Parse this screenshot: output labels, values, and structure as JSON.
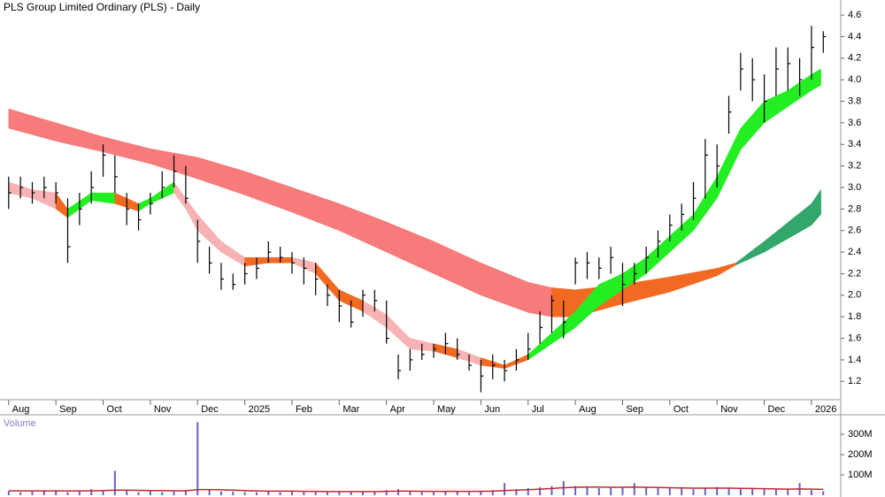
{
  "chart_data": [
    {
      "type": "hlc",
      "title": "PLS Group Limited Ordinary (PLS) - Daily",
      "xlim": [
        -0.09,
        17.62
      ],
      "ylim": [
        1.03,
        4.74
      ],
      "xticks": [
        {
          "value": 0,
          "label": "Aug"
        },
        {
          "value": 1,
          "label": "Sep"
        },
        {
          "value": 2,
          "label": "Oct"
        },
        {
          "value": 3,
          "label": "Nov"
        },
        {
          "value": 4,
          "label": "Dec"
        },
        {
          "value": 5,
          "label": "2025"
        },
        {
          "value": 6,
          "label": "Feb"
        },
        {
          "value": 7,
          "label": "Mar"
        },
        {
          "value": 8,
          "label": "Apr"
        },
        {
          "value": 9,
          "label": "May"
        },
        {
          "value": 10,
          "label": "Jun"
        },
        {
          "value": 11,
          "label": "Jul"
        },
        {
          "value": 12,
          "label": "Aug"
        },
        {
          "value": 13,
          "label": "Sep"
        },
        {
          "value": 14,
          "label": "Oct"
        },
        {
          "value": 15,
          "label": "Nov"
        },
        {
          "value": 16,
          "label": "Dec"
        },
        {
          "value": 17,
          "label": "2026"
        }
      ],
      "yticks": [
        1.2,
        1.4,
        1.6,
        1.8,
        {
          "value": 2,
          "label": "2.0"
        },
        2.2,
        2.4,
        2.6,
        2.8,
        {
          "value": 3,
          "label": "3.0"
        },
        3.2,
        3.4,
        3.6,
        3.8,
        {
          "value": 4,
          "label": "4.0"
        },
        4.2,
        4.4,
        4.6
      ],
      "bar_color": "#000000",
      "x": [
        0,
        0.25,
        0.5,
        0.75,
        1,
        1.25,
        1.5,
        1.75,
        2,
        2.25,
        2.5,
        2.75,
        3,
        3.25,
        3.5,
        3.75,
        4,
        4.25,
        4.5,
        4.75,
        5,
        5.25,
        5.5,
        5.75,
        6,
        6.25,
        6.5,
        6.75,
        7,
        7.25,
        7.5,
        7.75,
        8,
        8.25,
        8.5,
        8.75,
        9,
        9.25,
        9.5,
        9.75,
        10,
        10.25,
        10.5,
        10.75,
        11,
        11.25,
        11.5,
        11.75,
        12,
        12.25,
        12.5,
        12.75,
        13,
        13.25,
        13.5,
        13.75,
        14,
        14.25,
        14.5,
        14.75,
        15,
        15.25,
        15.5,
        15.75,
        16,
        16.25,
        16.5,
        16.75,
        17,
        17.25
      ],
      "high": [
        3.1,
        3.1,
        3.05,
        3.1,
        3.05,
        2.9,
        2.95,
        3.15,
        3.4,
        3.3,
        2.95,
        2.85,
        2.95,
        3.15,
        3.3,
        3.2,
        2.7,
        2.45,
        2.3,
        2.2,
        2.3,
        2.35,
        2.5,
        2.45,
        2.4,
        2.35,
        2.3,
        2.1,
        2.05,
        1.95,
        2.05,
        2.05,
        1.95,
        1.45,
        1.5,
        1.55,
        1.55,
        1.65,
        1.6,
        1.45,
        1.4,
        1.45,
        1.4,
        1.5,
        1.65,
        1.85,
        2.0,
        1.95,
        2.35,
        2.4,
        2.35,
        2.45,
        2.3,
        2.3,
        2.45,
        2.6,
        2.75,
        2.85,
        3.05,
        3.45,
        3.4,
        3.85,
        4.25,
        4.2,
        4.05,
        4.3,
        4.3,
        4.2,
        4.5,
        4.45
      ],
      "low": [
        2.8,
        2.9,
        2.85,
        2.9,
        2.85,
        2.3,
        2.65,
        2.85,
        3.1,
        2.95,
        2.65,
        2.6,
        2.75,
        2.9,
        3.0,
        2.85,
        2.3,
        2.2,
        2.05,
        2.05,
        2.1,
        2.15,
        2.3,
        2.3,
        2.2,
        2.1,
        2.0,
        1.9,
        1.75,
        1.7,
        1.8,
        1.85,
        1.55,
        1.22,
        1.3,
        1.4,
        1.42,
        1.45,
        1.4,
        1.3,
        1.1,
        1.22,
        1.2,
        1.3,
        1.4,
        1.55,
        1.65,
        1.6,
        2.1,
        2.15,
        2.15,
        2.2,
        1.9,
        2.1,
        2.2,
        2.35,
        2.5,
        2.6,
        2.7,
        2.9,
        3.0,
        3.5,
        3.9,
        3.8,
        3.6,
        3.85,
        3.9,
        3.85,
        4.0,
        4.25
      ],
      "close": [
        2.95,
        3.0,
        2.95,
        3.0,
        2.95,
        2.45,
        2.8,
        3.0,
        3.3,
        3.1,
        2.8,
        2.7,
        2.85,
        3.0,
        3.15,
        2.9,
        2.5,
        2.3,
        2.15,
        2.1,
        2.2,
        2.25,
        2.4,
        2.35,
        2.3,
        2.25,
        2.15,
        2.0,
        1.9,
        1.75,
        2.0,
        1.95,
        1.6,
        1.3,
        1.4,
        1.45,
        1.5,
        1.55,
        1.45,
        1.35,
        1.25,
        1.35,
        1.3,
        1.4,
        1.5,
        1.7,
        1.95,
        1.75,
        2.3,
        2.3,
        2.25,
        2.35,
        2.1,
        2.2,
        2.35,
        2.5,
        2.65,
        2.75,
        2.9,
        3.3,
        3.2,
        3.7,
        4.1,
        4.0,
        3.8,
        4.1,
        4.15,
        4.0,
        4.3,
        4.4
      ],
      "bands": [
        {
          "x": [
            0,
            1,
            2,
            3,
            4,
            5,
            6,
            7,
            8,
            9,
            10,
            11,
            11.5,
            12,
            13,
            14,
            15,
            15.4,
            16,
            17,
            17.2
          ],
          "upper": [
            3.73,
            3.6,
            3.47,
            3.36,
            3.28,
            3.15,
            3.0,
            2.85,
            2.68,
            2.5,
            2.3,
            2.12,
            2.07,
            2.05,
            2.1,
            2.17,
            2.25,
            2.3,
            2.5,
            2.85,
            2.98
          ],
          "lower": [
            3.55,
            3.43,
            3.33,
            3.22,
            3.08,
            2.93,
            2.77,
            2.6,
            2.4,
            2.2,
            2.0,
            1.84,
            1.8,
            1.8,
            1.92,
            2.03,
            2.18,
            2.28,
            2.4,
            2.65,
            2.75
          ],
          "colors": [
            "#f77b7b",
            "#f77b7b",
            "#f77b7b",
            "#f77b7b",
            "#f77b7b",
            "#f77b7b",
            "#f77b7b",
            "#f77b7b",
            "#f77b7b",
            "#f77b7b",
            "#f77b7b",
            "#f77b7b",
            "#f26a22",
            "#f26a22",
            "#f26a22",
            "#f26a22",
            "#f26a22",
            "#33a66b",
            "#33a66b",
            "#33a66b",
            "#33a66b"
          ]
        },
        {
          "x": [
            0,
            0.5,
            1,
            1.25,
            1.75,
            2.25,
            2.75,
            3,
            3.5,
            3.75,
            4,
            4.5,
            5,
            5.5,
            6,
            6.5,
            7,
            7.5,
            8,
            8.5,
            9,
            9.5,
            10,
            10.5,
            11,
            11.5,
            12,
            12.5,
            13,
            13.5,
            14,
            14.5,
            15,
            15.5,
            16,
            16.5,
            17,
            17.2
          ],
          "upper": [
            3.05,
            2.98,
            2.95,
            2.8,
            2.95,
            2.95,
            2.85,
            2.9,
            3.05,
            2.9,
            2.75,
            2.5,
            2.35,
            2.35,
            2.35,
            2.3,
            2.05,
            1.95,
            1.82,
            1.6,
            1.55,
            1.5,
            1.42,
            1.35,
            1.45,
            1.65,
            1.85,
            2.1,
            2.2,
            2.35,
            2.55,
            2.75,
            3.1,
            3.55,
            3.8,
            3.9,
            4.05,
            4.1
          ],
          "lower": [
            2.95,
            2.9,
            2.8,
            2.72,
            2.88,
            2.85,
            2.78,
            2.85,
            2.95,
            2.8,
            2.6,
            2.4,
            2.27,
            2.3,
            2.3,
            2.2,
            1.95,
            1.85,
            1.7,
            1.5,
            1.48,
            1.42,
            1.35,
            1.32,
            1.4,
            1.55,
            1.7,
            1.9,
            2.05,
            2.2,
            2.4,
            2.6,
            2.9,
            3.35,
            3.6,
            3.75,
            3.9,
            3.95
          ],
          "colors": [
            "#f7b3b3",
            "#f7b3b3",
            "#f26a22",
            "#22ee22",
            "#22ee22",
            "#f26a22",
            "#22ee22",
            "#22ee22",
            "#f7b3b3",
            "#f7b3b3",
            "#f7b3b3",
            "#f7b3b3",
            "#f26a22",
            "#f26a22",
            "#f7b3b3",
            "#f26a22",
            "#f26a22",
            "#f7b3b3",
            "#f7b3b3",
            "#f7b3b3",
            "#f26a22",
            "#f7b3b3",
            "#f26a22",
            "#f26a22",
            "#22ee22",
            "#22ee22",
            "#22ee22",
            "#22ee22",
            "#22ee22",
            "#22ee22",
            "#22ee22",
            "#22ee22",
            "#22ee22",
            "#22ee22",
            "#22ee22",
            "#22ee22",
            "#22ee22",
            "#22ee22"
          ]
        }
      ]
    },
    {
      "type": "volume",
      "title": "Volume",
      "ylim": [
        0,
        370000000
      ],
      "yticks": [
        {
          "value": 100000000,
          "label": "100M"
        },
        {
          "value": 200000000,
          "label": "200M"
        },
        {
          "value": 300000000,
          "label": "300M"
        }
      ],
      "color": "#6b5fc7",
      "average_color": "#c0282d",
      "values": [
        20000000.0,
        15000000.0,
        18000000.0,
        20000000.0,
        25000000.0,
        15000000.0,
        18000000.0,
        30000000.0,
        20000000.0,
        120000000.0,
        25000000.0,
        15000000.0,
        20000000.0,
        15000000.0,
        18000000.0,
        25000000.0,
        360000000.0,
        30000000.0,
        20000000.0,
        18000000.0,
        15000000.0,
        15000000.0,
        20000000.0,
        15000000.0,
        18000000.0,
        15000000.0,
        15000000.0,
        18000000.0,
        20000000.0,
        15000000.0,
        18000000.0,
        15000000.0,
        25000000.0,
        30000000.0,
        18000000.0,
        15000000.0,
        15000000.0,
        20000000.0,
        18000000.0,
        15000000.0,
        20000000.0,
        25000000.0,
        60000000.0,
        30000000.0,
        35000000.0,
        40000000.0,
        45000000.0,
        70000000.0,
        45000000.0,
        40000000.0,
        35000000.0,
        40000000.0,
        38000000.0,
        60000000.0,
        40000000.0,
        35000000.0,
        35000000.0,
        38000000.0,
        30000000.0,
        35000000.0,
        40000000.0,
        38000000.0,
        35000000.0,
        30000000.0,
        32000000.0,
        28000000.0,
        30000000.0,
        60000000.0,
        25000000.0,
        20000000.0
      ],
      "average": [
        22000000.0,
        22000000.0,
        21000000.0,
        21000000.0,
        21000000.0,
        21000000.0,
        21000000.0,
        22000000.0,
        23000000.0,
        25000000.0,
        25000000.0,
        24000000.0,
        23000000.0,
        23000000.0,
        22000000.0,
        22000000.0,
        28000000.0,
        28000000.0,
        27000000.0,
        25000000.0,
        23000000.0,
        21000000.0,
        20000000.0,
        20000000.0,
        20000000.0,
        19000000.0,
        19000000.0,
        18000000.0,
        18000000.0,
        18000000.0,
        18000000.0,
        18000000.0,
        19000000.0,
        20000000.0,
        20000000.0,
        19000000.0,
        19000000.0,
        19000000.0,
        19000000.0,
        19000000.0,
        19000000.0,
        20000000.0,
        23000000.0,
        25000000.0,
        27000000.0,
        30000000.0,
        33000000.0,
        37000000.0,
        39000000.0,
        40000000.0,
        40000000.0,
        39000000.0,
        39000000.0,
        40000000.0,
        39000000.0,
        38000000.0,
        37000000.0,
        36000000.0,
        35000000.0,
        35000000.0,
        35000000.0,
        35000000.0,
        34000000.0,
        33000000.0,
        32000000.0,
        31000000.0,
        30000000.0,
        31000000.0,
        30000000.0,
        29000000.0
      ]
    }
  ]
}
